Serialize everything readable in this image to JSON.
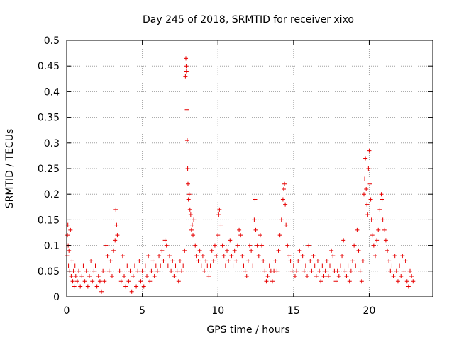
{
  "chart_data": {
    "type": "scatter",
    "title": "Day 245 of 2018, SRMTID for receiver xixo",
    "xlabel": "GPS time / hours",
    "ylabel": "SRMTID / TECUs",
    "xlim": [
      0,
      24.2
    ],
    "ylim": [
      0,
      0.5
    ],
    "x_ticks": [
      0,
      5,
      10,
      15,
      20
    ],
    "x_tick_labels": [
      "0",
      "5",
      "10",
      "15",
      "20"
    ],
    "y_ticks": [
      0,
      0.05,
      0.1,
      0.15,
      0.2,
      0.25,
      0.3,
      0.35,
      0.4,
      0.45,
      0.5
    ],
    "y_tick_labels": [
      "0",
      "0.05",
      "0.1",
      "0.15",
      "0.2",
      "0.25",
      "0.3",
      "0.35",
      "0.4",
      "0.45",
      "0.5"
    ],
    "grid": true,
    "marker": "+",
    "series": [
      {
        "name": "SRMTID",
        "color": "#e60000",
        "points": [
          [
            0.02,
            0.08
          ],
          [
            0.05,
            0.12
          ],
          [
            0.08,
            0.14
          ],
          [
            0.1,
            0.1
          ],
          [
            0.12,
            0.06
          ],
          [
            0.15,
            0.09
          ],
          [
            0.2,
            0.05
          ],
          [
            0.25,
            0.13
          ],
          [
            0.3,
            0.04
          ],
          [
            0.35,
            0.07
          ],
          [
            0.4,
            0.03
          ],
          [
            0.45,
            0.05
          ],
          [
            0.5,
            0.02
          ],
          [
            0.55,
            0.06
          ],
          [
            0.6,
            0.04
          ],
          [
            0.7,
            0.03
          ],
          [
            0.8,
            0.05
          ],
          [
            0.9,
            0.02
          ],
          [
            1.0,
            0.04
          ],
          [
            1.1,
            0.06
          ],
          [
            1.2,
            0.03
          ],
          [
            1.3,
            0.05
          ],
          [
            1.4,
            0.02
          ],
          [
            1.5,
            0.04
          ],
          [
            1.6,
            0.07
          ],
          [
            1.7,
            0.03
          ],
          [
            1.8,
            0.05
          ],
          [
            1.9,
            0.06
          ],
          [
            2.0,
            0.02
          ],
          [
            2.1,
            0.04
          ],
          [
            2.2,
            0.03
          ],
          [
            2.3,
            0.01
          ],
          [
            2.4,
            0.05
          ],
          [
            2.5,
            0.03
          ],
          [
            2.6,
            0.1
          ],
          [
            2.7,
            0.08
          ],
          [
            2.8,
            0.05
          ],
          [
            2.9,
            0.07
          ],
          [
            3.0,
            0.04
          ],
          [
            3.1,
            0.09
          ],
          [
            3.2,
            0.11
          ],
          [
            3.25,
            0.17
          ],
          [
            3.3,
            0.14
          ],
          [
            3.35,
            0.12
          ],
          [
            3.4,
            0.06
          ],
          [
            3.5,
            0.05
          ],
          [
            3.6,
            0.03
          ],
          [
            3.7,
            0.08
          ],
          [
            3.8,
            0.04
          ],
          [
            3.9,
            0.02
          ],
          [
            4.0,
            0.06
          ],
          [
            4.1,
            0.03
          ],
          [
            4.2,
            0.05
          ],
          [
            4.3,
            0.01
          ],
          [
            4.4,
            0.04
          ],
          [
            4.5,
            0.06
          ],
          [
            4.6,
            0.02
          ],
          [
            4.7,
            0.05
          ],
          [
            4.8,
            0.07
          ],
          [
            4.9,
            0.03
          ],
          [
            5.0,
            0.05
          ],
          [
            5.1,
            0.02
          ],
          [
            5.2,
            0.06
          ],
          [
            5.3,
            0.04
          ],
          [
            5.4,
            0.08
          ],
          [
            5.5,
            0.03
          ],
          [
            5.6,
            0.05
          ],
          [
            5.7,
            0.07
          ],
          [
            5.8,
            0.04
          ],
          [
            5.9,
            0.06
          ],
          [
            6.0,
            0.05
          ],
          [
            6.1,
            0.08
          ],
          [
            6.2,
            0.06
          ],
          [
            6.3,
            0.09
          ],
          [
            6.4,
            0.07
          ],
          [
            6.5,
            0.11
          ],
          [
            6.6,
            0.1
          ],
          [
            6.7,
            0.06
          ],
          [
            6.8,
            0.08
          ],
          [
            6.9,
            0.05
          ],
          [
            7.0,
            0.07
          ],
          [
            7.1,
            0.04
          ],
          [
            7.2,
            0.06
          ],
          [
            7.3,
            0.05
          ],
          [
            7.4,
            0.03
          ],
          [
            7.5,
            0.07
          ],
          [
            7.6,
            0.05
          ],
          [
            7.7,
            0.06
          ],
          [
            7.8,
            0.09
          ],
          [
            7.85,
            0.43
          ],
          [
            7.88,
            0.465
          ],
          [
            7.9,
            0.45
          ],
          [
            7.92,
            0.44
          ],
          [
            7.95,
            0.365
          ],
          [
            7.97,
            0.305
          ],
          [
            8.0,
            0.25
          ],
          [
            8.02,
            0.22
          ],
          [
            8.05,
            0.19
          ],
          [
            8.1,
            0.2
          ],
          [
            8.15,
            0.17
          ],
          [
            8.2,
            0.16
          ],
          [
            8.25,
            0.13
          ],
          [
            8.3,
            0.14
          ],
          [
            8.35,
            0.12
          ],
          [
            8.4,
            0.15
          ],
          [
            8.5,
            0.1
          ],
          [
            8.6,
            0.08
          ],
          [
            8.7,
            0.07
          ],
          [
            8.8,
            0.09
          ],
          [
            8.9,
            0.06
          ],
          [
            9.0,
            0.08
          ],
          [
            9.1,
            0.05
          ],
          [
            9.2,
            0.07
          ],
          [
            9.3,
            0.06
          ],
          [
            9.4,
            0.04
          ],
          [
            9.5,
            0.06
          ],
          [
            9.6,
            0.09
          ],
          [
            9.7,
            0.07
          ],
          [
            9.8,
            0.1
          ],
          [
            9.9,
            0.08
          ],
          [
            10.0,
            0.12
          ],
          [
            10.05,
            0.16
          ],
          [
            10.1,
            0.17
          ],
          [
            10.2,
            0.14
          ],
          [
            10.3,
            0.1
          ],
          [
            10.4,
            0.08
          ],
          [
            10.5,
            0.06
          ],
          [
            10.6,
            0.09
          ],
          [
            10.7,
            0.07
          ],
          [
            10.8,
            0.11
          ],
          [
            10.9,
            0.08
          ],
          [
            11.0,
            0.06
          ],
          [
            11.1,
            0.09
          ],
          [
            11.2,
            0.07
          ],
          [
            11.3,
            0.1
          ],
          [
            11.4,
            0.13
          ],
          [
            11.5,
            0.12
          ],
          [
            11.6,
            0.08
          ],
          [
            11.7,
            0.06
          ],
          [
            11.8,
            0.05
          ],
          [
            11.9,
            0.04
          ],
          [
            12.0,
            0.07
          ],
          [
            12.1,
            0.1
          ],
          [
            12.2,
            0.09
          ],
          [
            12.3,
            0.06
          ],
          [
            12.4,
            0.15
          ],
          [
            12.45,
            0.19
          ],
          [
            12.5,
            0.13
          ],
          [
            12.6,
            0.1
          ],
          [
            12.7,
            0.08
          ],
          [
            12.8,
            0.12
          ],
          [
            12.9,
            0.1
          ],
          [
            13.0,
            0.07
          ],
          [
            13.1,
            0.05
          ],
          [
            13.2,
            0.03
          ],
          [
            13.3,
            0.04
          ],
          [
            13.4,
            0.06
          ],
          [
            13.5,
            0.05
          ],
          [
            13.6,
            0.03
          ],
          [
            13.7,
            0.05
          ],
          [
            13.8,
            0.07
          ],
          [
            13.9,
            0.05
          ],
          [
            14.0,
            0.09
          ],
          [
            14.1,
            0.12
          ],
          [
            14.2,
            0.15
          ],
          [
            14.3,
            0.19
          ],
          [
            14.35,
            0.21
          ],
          [
            14.4,
            0.22
          ],
          [
            14.45,
            0.18
          ],
          [
            14.5,
            0.14
          ],
          [
            14.6,
            0.1
          ],
          [
            14.7,
            0.08
          ],
          [
            14.8,
            0.07
          ],
          [
            14.9,
            0.05
          ],
          [
            15.0,
            0.06
          ],
          [
            15.1,
            0.04
          ],
          [
            15.2,
            0.05
          ],
          [
            15.3,
            0.07
          ],
          [
            15.4,
            0.09
          ],
          [
            15.5,
            0.06
          ],
          [
            15.6,
            0.08
          ],
          [
            15.7,
            0.05
          ],
          [
            15.8,
            0.06
          ],
          [
            15.9,
            0.04
          ],
          [
            16.0,
            0.1
          ],
          [
            16.1,
            0.07
          ],
          [
            16.2,
            0.05
          ],
          [
            16.3,
            0.08
          ],
          [
            16.4,
            0.06
          ],
          [
            16.5,
            0.04
          ],
          [
            16.6,
            0.07
          ],
          [
            16.7,
            0.05
          ],
          [
            16.8,
            0.03
          ],
          [
            16.9,
            0.06
          ],
          [
            17.0,
            0.04
          ],
          [
            17.1,
            0.05
          ],
          [
            17.2,
            0.07
          ],
          [
            17.3,
            0.04
          ],
          [
            17.4,
            0.06
          ],
          [
            17.5,
            0.09
          ],
          [
            17.6,
            0.08
          ],
          [
            17.7,
            0.05
          ],
          [
            17.8,
            0.03
          ],
          [
            17.9,
            0.05
          ],
          [
            18.0,
            0.04
          ],
          [
            18.1,
            0.06
          ],
          [
            18.2,
            0.08
          ],
          [
            18.3,
            0.11
          ],
          [
            18.4,
            0.05
          ],
          [
            18.5,
            0.04
          ],
          [
            18.6,
            0.06
          ],
          [
            18.7,
            0.03
          ],
          [
            18.8,
            0.05
          ],
          [
            18.9,
            0.07
          ],
          [
            19.0,
            0.1
          ],
          [
            19.1,
            0.06
          ],
          [
            19.2,
            0.13
          ],
          [
            19.3,
            0.09
          ],
          [
            19.4,
            0.05
          ],
          [
            19.5,
            0.03
          ],
          [
            19.6,
            0.07
          ],
          [
            19.65,
            0.2
          ],
          [
            19.7,
            0.23
          ],
          [
            19.75,
            0.27
          ],
          [
            19.8,
            0.21
          ],
          [
            19.85,
            0.18
          ],
          [
            19.9,
            0.16
          ],
          [
            19.95,
            0.25
          ],
          [
            20.0,
            0.285
          ],
          [
            20.05,
            0.22
          ],
          [
            20.1,
            0.19
          ],
          [
            20.15,
            0.15
          ],
          [
            20.2,
            0.12
          ],
          [
            20.3,
            0.1
          ],
          [
            20.4,
            0.08
          ],
          [
            20.5,
            0.11
          ],
          [
            20.6,
            0.13
          ],
          [
            20.7,
            0.17
          ],
          [
            20.8,
            0.2
          ],
          [
            20.85,
            0.19
          ],
          [
            20.9,
            0.15
          ],
          [
            21.0,
            0.13
          ],
          [
            21.1,
            0.11
          ],
          [
            21.2,
            0.09
          ],
          [
            21.3,
            0.07
          ],
          [
            21.4,
            0.05
          ],
          [
            21.5,
            0.06
          ],
          [
            21.6,
            0.04
          ],
          [
            21.7,
            0.08
          ],
          [
            21.8,
            0.05
          ],
          [
            21.9,
            0.03
          ],
          [
            22.0,
            0.06
          ],
          [
            22.1,
            0.04
          ],
          [
            22.2,
            0.08
          ],
          [
            22.3,
            0.05
          ],
          [
            22.4,
            0.07
          ],
          [
            22.5,
            0.03
          ],
          [
            22.6,
            0.02
          ],
          [
            22.7,
            0.05
          ],
          [
            22.8,
            0.04
          ],
          [
            22.9,
            0.03
          ]
        ]
      }
    ]
  }
}
